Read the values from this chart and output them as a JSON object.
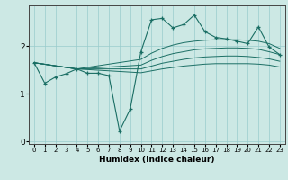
{
  "xlabel": "Humidex (Indice chaleur)",
  "bg_color": "#cce8e4",
  "line_color": "#1a6e64",
  "grid_color": "#99cccc",
  "xlim": [
    -0.5,
    23.5
  ],
  "ylim": [
    -0.05,
    2.85
  ],
  "yticks": [
    0,
    1,
    2
  ],
  "xticks": [
    0,
    1,
    2,
    3,
    4,
    5,
    6,
    7,
    8,
    9,
    10,
    11,
    12,
    13,
    14,
    15,
    16,
    17,
    18,
    19,
    20,
    21,
    22,
    23
  ],
  "series_main": {
    "x": [
      0,
      1,
      2,
      3,
      4,
      5,
      6,
      7,
      8,
      9,
      10,
      11,
      12,
      13,
      14,
      15,
      16,
      17,
      18,
      19,
      20,
      21,
      22,
      23
    ],
    "y": [
      1.65,
      1.22,
      1.35,
      1.42,
      1.52,
      1.43,
      1.43,
      1.38,
      0.22,
      0.68,
      1.88,
      2.55,
      2.58,
      2.38,
      2.45,
      2.65,
      2.3,
      2.18,
      2.15,
      2.1,
      2.05,
      2.4,
      1.98,
      1.82
    ]
  },
  "series_smooth1": {
    "x": [
      0,
      4,
      10,
      11,
      12,
      13,
      14,
      15,
      16,
      17,
      18,
      19,
      20,
      21,
      22,
      23
    ],
    "y": [
      1.65,
      1.52,
      1.72,
      1.85,
      1.95,
      2.02,
      2.07,
      2.1,
      2.12,
      2.13,
      2.13,
      2.13,
      2.12,
      2.1,
      2.05,
      1.95
    ]
  },
  "series_smooth2": {
    "x": [
      0,
      4,
      10,
      11,
      12,
      13,
      14,
      15,
      16,
      17,
      18,
      19,
      20,
      21,
      22,
      23
    ],
    "y": [
      1.65,
      1.52,
      1.6,
      1.7,
      1.78,
      1.84,
      1.88,
      1.92,
      1.94,
      1.95,
      1.96,
      1.96,
      1.95,
      1.93,
      1.88,
      1.82
    ]
  },
  "series_smooth3": {
    "x": [
      0,
      4,
      10,
      11,
      12,
      13,
      14,
      15,
      16,
      17,
      18,
      19,
      20,
      21,
      22,
      23
    ],
    "y": [
      1.65,
      1.52,
      1.52,
      1.58,
      1.64,
      1.68,
      1.72,
      1.75,
      1.77,
      1.78,
      1.79,
      1.79,
      1.78,
      1.76,
      1.73,
      1.68
    ]
  },
  "series_smooth4": {
    "x": [
      0,
      4,
      10,
      11,
      12,
      13,
      14,
      15,
      16,
      17,
      18,
      19,
      20,
      21,
      22,
      23
    ],
    "y": [
      1.65,
      1.52,
      1.44,
      1.48,
      1.52,
      1.55,
      1.58,
      1.6,
      1.62,
      1.63,
      1.63,
      1.63,
      1.63,
      1.62,
      1.6,
      1.56
    ]
  }
}
